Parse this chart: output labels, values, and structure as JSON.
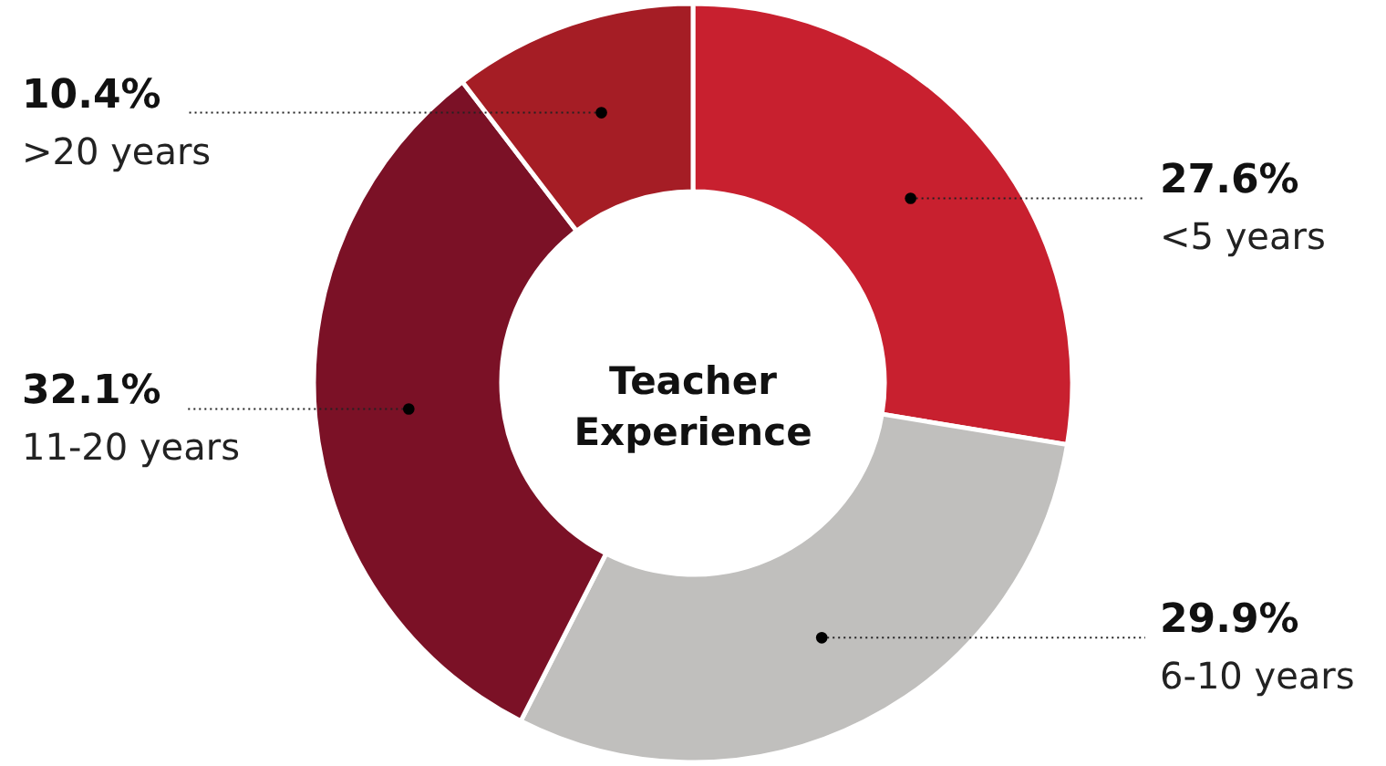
{
  "chart_data": {
    "type": "donut",
    "title": "Teacher Experience",
    "categories": [
      "<5 years",
      "6-10 years",
      "11-20 years",
      ">20 years"
    ],
    "values": [
      27.6,
      29.9,
      32.1,
      10.4
    ],
    "colors": [
      "#c8202f",
      "#c0bfbd",
      "#7b1126",
      "#a51d25"
    ],
    "value_labels": [
      "27.6%",
      "29.9%",
      "32.1%",
      "10.4%"
    ]
  }
}
